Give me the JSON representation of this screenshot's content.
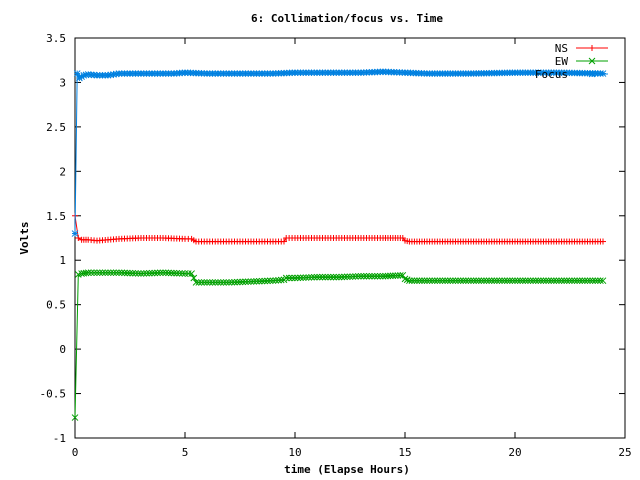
{
  "chart_data": {
    "type": "line",
    "title": "6: Collimation/focus vs. Time",
    "xlabel": "time (Elapse Hours)",
    "ylabel": "Volts",
    "xlim": [
      0,
      25
    ],
    "ylim": [
      -1,
      3.5
    ],
    "xticks": [
      "0",
      "5",
      "10",
      "15",
      "20",
      "25"
    ],
    "yticks": [
      "-1",
      "-0.5",
      "0",
      "0.5",
      "1",
      "1.5",
      "2",
      "2.5",
      "3",
      "3.5"
    ],
    "legend_position": "top-right",
    "grid": false,
    "series": [
      {
        "name": "NS",
        "color": "#ff0000",
        "marker": "plus",
        "points": [
          [
            0.0,
            1.5
          ],
          [
            0.15,
            1.25
          ],
          [
            0.3,
            1.23
          ],
          [
            0.6,
            1.23
          ],
          [
            1.0,
            1.22
          ],
          [
            2.0,
            1.24
          ],
          [
            3.0,
            1.25
          ],
          [
            4.0,
            1.25
          ],
          [
            5.0,
            1.24
          ],
          [
            5.3,
            1.24
          ],
          [
            5.5,
            1.21
          ],
          [
            6.0,
            1.21
          ],
          [
            7.0,
            1.21
          ],
          [
            8.0,
            1.21
          ],
          [
            9.0,
            1.21
          ],
          [
            9.5,
            1.21
          ],
          [
            9.6,
            1.25
          ],
          [
            10.0,
            1.25
          ],
          [
            11.0,
            1.25
          ],
          [
            12.0,
            1.25
          ],
          [
            13.0,
            1.25
          ],
          [
            14.0,
            1.25
          ],
          [
            14.9,
            1.25
          ],
          [
            15.0,
            1.22
          ],
          [
            15.2,
            1.21
          ],
          [
            16.0,
            1.21
          ],
          [
            18.0,
            1.21
          ],
          [
            20.0,
            1.21
          ],
          [
            22.0,
            1.21
          ],
          [
            24.0,
            1.21
          ]
        ]
      },
      {
        "name": "EW",
        "color": "#00a000",
        "marker": "cross",
        "points": [
          [
            0.0,
            -0.77
          ],
          [
            0.15,
            0.84
          ],
          [
            0.3,
            0.85
          ],
          [
            0.6,
            0.86
          ],
          [
            1.0,
            0.86
          ],
          [
            2.0,
            0.86
          ],
          [
            3.0,
            0.85
          ],
          [
            4.0,
            0.86
          ],
          [
            5.0,
            0.85
          ],
          [
            5.3,
            0.85
          ],
          [
            5.5,
            0.75
          ],
          [
            6.0,
            0.75
          ],
          [
            7.0,
            0.75
          ],
          [
            8.0,
            0.76
          ],
          [
            9.0,
            0.77
          ],
          [
            9.5,
            0.78
          ],
          [
            9.6,
            0.8
          ],
          [
            10.0,
            0.8
          ],
          [
            11.0,
            0.81
          ],
          [
            12.0,
            0.81
          ],
          [
            13.0,
            0.82
          ],
          [
            14.0,
            0.82
          ],
          [
            14.9,
            0.83
          ],
          [
            15.0,
            0.79
          ],
          [
            15.2,
            0.77
          ],
          [
            16.0,
            0.77
          ],
          [
            18.0,
            0.77
          ],
          [
            20.0,
            0.77
          ],
          [
            22.0,
            0.77
          ],
          [
            24.0,
            0.77
          ]
        ]
      },
      {
        "name": "Focus",
        "color": "#0080e0",
        "marker": "star",
        "points": [
          [
            0.0,
            1.3
          ],
          [
            0.1,
            3.1
          ],
          [
            0.2,
            3.05
          ],
          [
            0.4,
            3.08
          ],
          [
            0.6,
            3.09
          ],
          [
            1.0,
            3.08
          ],
          [
            1.5,
            3.08
          ],
          [
            2.0,
            3.1
          ],
          [
            3.0,
            3.1
          ],
          [
            4.0,
            3.1
          ],
          [
            4.5,
            3.1
          ],
          [
            5.0,
            3.11
          ],
          [
            6.0,
            3.1
          ],
          [
            7.0,
            3.1
          ],
          [
            8.0,
            3.1
          ],
          [
            9.0,
            3.1
          ],
          [
            10.0,
            3.11
          ],
          [
            11.0,
            3.11
          ],
          [
            12.0,
            3.11
          ],
          [
            13.0,
            3.11
          ],
          [
            14.0,
            3.12
          ],
          [
            15.0,
            3.11
          ],
          [
            16.0,
            3.1
          ],
          [
            18.0,
            3.1
          ],
          [
            20.0,
            3.11
          ],
          [
            22.0,
            3.11
          ],
          [
            24.0,
            3.1
          ]
        ]
      }
    ]
  }
}
